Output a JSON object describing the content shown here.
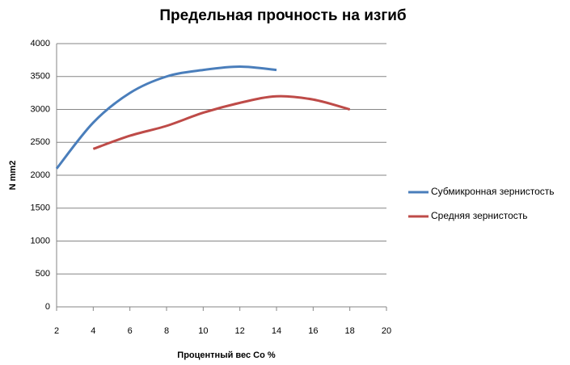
{
  "chart_data": {
    "type": "line",
    "title": "Предельная прочность на изгиб",
    "x_label": "Процентный вес Co %",
    "y_label": "N mm2",
    "xlim": [
      2,
      20
    ],
    "xticks": [
      2,
      4,
      6,
      8,
      10,
      12,
      14,
      16,
      18,
      20
    ],
    "ylim": [
      0,
      4000
    ],
    "yticks": [
      0,
      500,
      1000,
      1500,
      2000,
      2500,
      3000,
      3500,
      4000
    ],
    "grid": true,
    "legend": "right",
    "series": [
      {
        "name": "Субмикронная зернистость",
        "color": "#4a7ebb",
        "x": [
          2,
          4,
          6,
          8,
          10,
          12,
          14
        ],
        "values": [
          2100,
          2800,
          3250,
          3500,
          3600,
          3650,
          3600
        ]
      },
      {
        "name": "Средняя зернистость",
        "color": "#be4b48",
        "x": [
          4,
          6,
          8,
          10,
          12,
          14,
          16,
          18
        ],
        "values": [
          2400,
          2600,
          2750,
          2950,
          3100,
          3200,
          3150,
          3000
        ]
      }
    ]
  }
}
